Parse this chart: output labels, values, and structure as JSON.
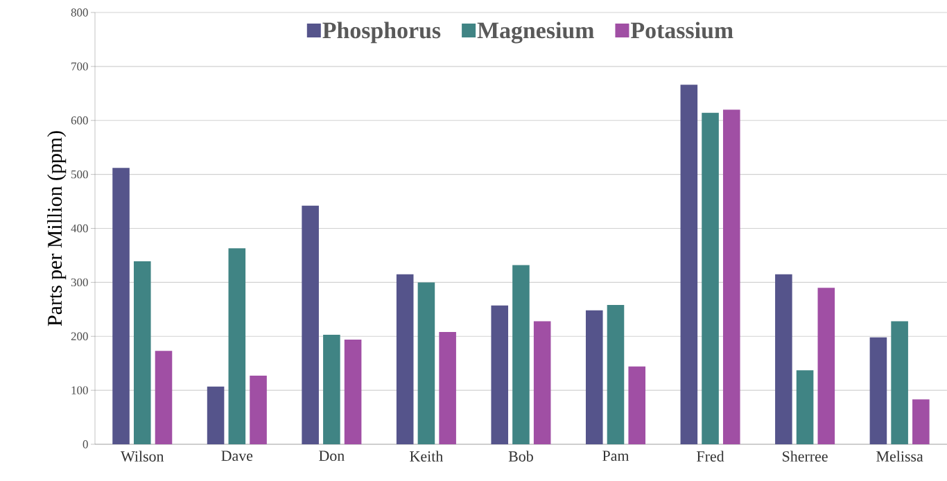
{
  "chart_data": {
    "type": "bar",
    "ylabel": "Parts per Million (ppm)",
    "categories": [
      "Wilson",
      "Dave",
      "Don",
      "Keith",
      "Bob",
      "Pam",
      "Fred",
      "Sherree",
      "Melissa"
    ],
    "series": [
      {
        "name": "Phosphorus",
        "color": "#55548b",
        "values": [
          512,
          107,
          442,
          315,
          257,
          248,
          666,
          315,
          198
        ]
      },
      {
        "name": "Magnesium",
        "color": "#408484",
        "values": [
          339,
          363,
          203,
          300,
          332,
          258,
          614,
          137,
          228
        ]
      },
      {
        "name": "Potassium",
        "color": "#a04fa4",
        "values": [
          173,
          127,
          194,
          208,
          228,
          144,
          620,
          290,
          83
        ]
      }
    ],
    "ylim": [
      0,
      800
    ],
    "yticks": [
      0,
      100,
      200,
      300,
      400,
      500,
      600,
      700,
      800
    ],
    "grid": "y",
    "legend": "top"
  }
}
